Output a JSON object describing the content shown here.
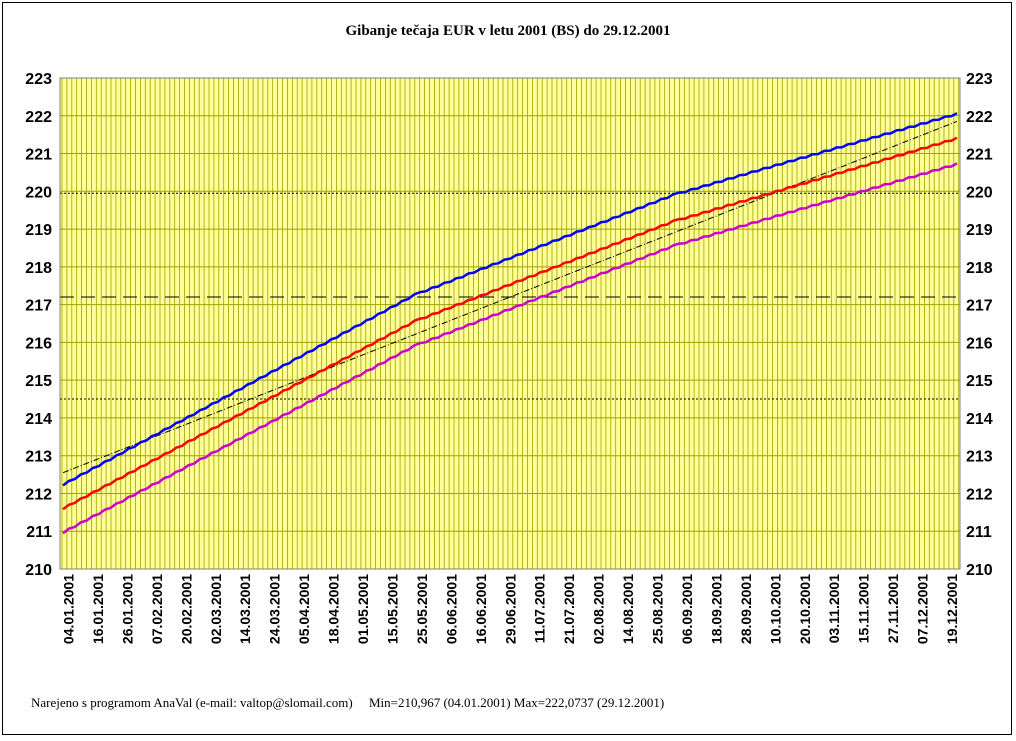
{
  "chart_data": {
    "type": "line",
    "title": "Gibanje tečaja EUR v letu 2001 (BS) do 29.12.2001",
    "ylim": [
      210,
      223
    ],
    "y_ticks": [
      223,
      222,
      221,
      220,
      219,
      218,
      217,
      216,
      215,
      214,
      213,
      212,
      211,
      210
    ],
    "x_labels": [
      "04.01.2001",
      "16.01.2001",
      "26.01.2001",
      "07.02.2001",
      "20.02.2001",
      "02.03.2001",
      "14.03.2001",
      "24.03.2001",
      "05.04.2001",
      "18.04.2001",
      "01.05.2001",
      "15.05.2001",
      "25.05.2001",
      "06.06.2001",
      "16.06.2001",
      "29.06.2001",
      "11.07.2001",
      "21.07.2001",
      "02.08.2001",
      "14.08.2001",
      "25.08.2001",
      "06.09.2001",
      "18.09.2001",
      "28.09.2001",
      "10.10.2001",
      "20.10.2001",
      "03.11.2001",
      "15.11.2001",
      "27.11.2001",
      "07.12.2001",
      "19.12.2001"
    ],
    "grid": true,
    "legend": "none",
    "series": [
      {
        "color": "#0000ff",
        "x": [
          "04.01.2001",
          "25.05.2001",
          "06.09.2001",
          "10.10.2001",
          "29.12.2001"
        ],
        "values": [
          212.23,
          217.25,
          219.9,
          220.55,
          222.05
        ]
      },
      {
        "color": "#ff0000",
        "x": [
          "04.01.2001",
          "25.05.2001",
          "06.09.2001",
          "10.10.2001",
          "29.12.2001"
        ],
        "values": [
          211.6,
          216.55,
          219.2,
          219.85,
          221.4
        ]
      },
      {
        "color": "#cc00cc",
        "x": [
          "04.01.2001",
          "25.05.2001",
          "06.09.2001",
          "10.10.2001",
          "29.12.2001"
        ],
        "values": [
          210.967,
          215.9,
          218.55,
          219.2,
          220.72
        ]
      }
    ],
    "trend_line": {
      "color": "#000000",
      "x": [
        "04.01.2001",
        "29.12.2001"
      ],
      "values": [
        212.55,
        221.85
      ]
    },
    "reference_lines": [
      {
        "style": "long-dash",
        "value": 217.2
      },
      {
        "style": "dotted",
        "value": 219.95
      },
      {
        "style": "dotted",
        "value": 214.5
      }
    ],
    "colors": {
      "plot_background": "#ffff99",
      "grid": "#a0a000",
      "frame": "#000000"
    }
  },
  "footer": {
    "made_with": "Narejeno s programom AnaVal (e-mail: valtop@slomail.com)",
    "min_max": "Min=210,967 (04.01.2001) Max=222,0737 (29.12.2001)"
  }
}
